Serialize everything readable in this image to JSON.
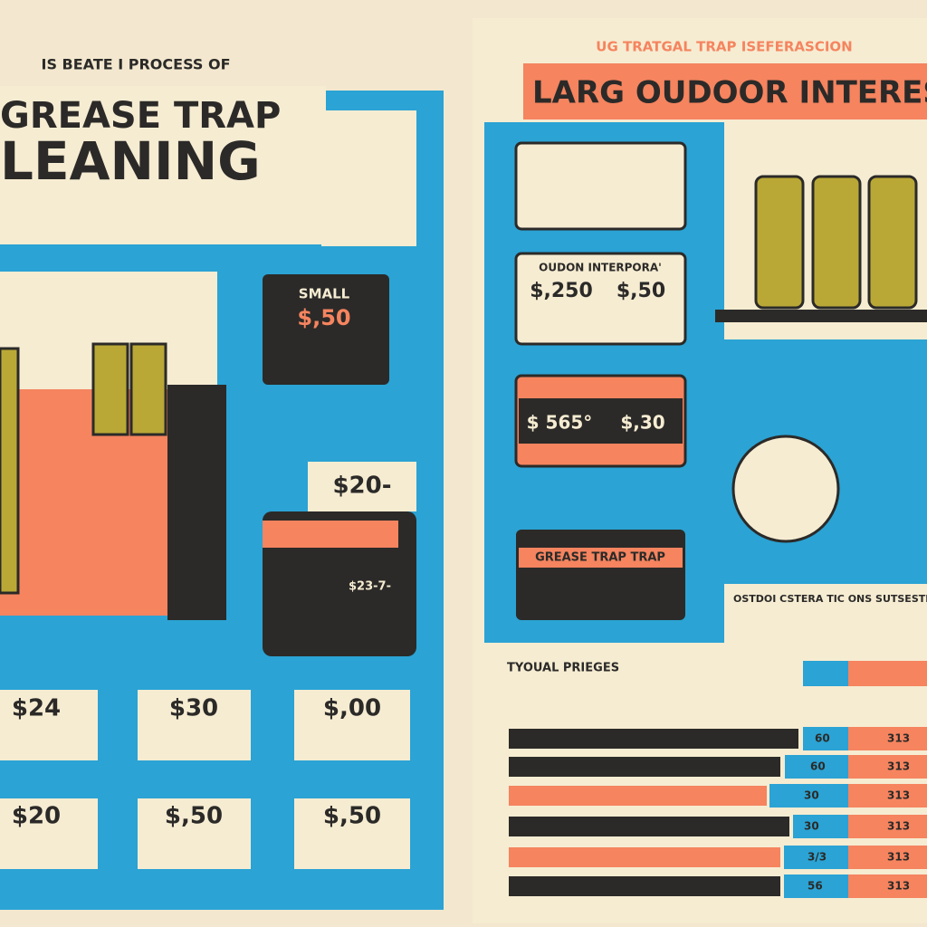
{
  "left": {
    "kicker": "IS BEATE I PROCESS OF",
    "title": [
      "GREASE TRAP",
      "LEANING"
    ],
    "small_box": {
      "label": "SMALL",
      "price": "$,50"
    },
    "tag": "$20-",
    "dark_box_price": "$23-7-",
    "prices_top": [
      "$24",
      "$30",
      "$,00"
    ],
    "prices_bottom": [
      "$20",
      "$,50",
      "$,50"
    ]
  },
  "right": {
    "kicker": "UG TRATGAL TRAP ISEFERASCION",
    "title": "LARG OUDOOR INTERESCTI",
    "box2": {
      "title": "OUDON INTERPORA'",
      "prices": [
        "$,250",
        "$,50"
      ]
    },
    "box3": {
      "prices": [
        "$ 565°",
        "$,30"
      ]
    },
    "box4": {
      "title": "GREASE TRAP TRAP"
    },
    "section": "OSTDOI CSTERA TIC ONS SUTSESTEG",
    "table": {
      "title": "TYOUAL PRIEGES",
      "left_labels": [
        "60",
        "60",
        "30",
        "30",
        "3/3",
        "56"
      ],
      "right_labels": [
        "313",
        "313",
        "313",
        "313",
        "313",
        "313"
      ]
    }
  }
}
